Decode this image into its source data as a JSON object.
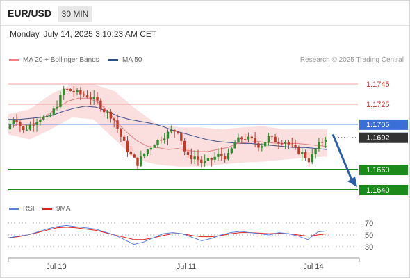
{
  "header": {
    "symbol": "EUR/USD",
    "timeframe": "30 MIN",
    "timestamp": "Monday, July 14, 2025 3:10:23 AM CET"
  },
  "legend": {
    "ma_bb": "MA 20 + Bollinger Bands",
    "ma50": "MA 50",
    "credit": "Research © 2025 Trading Central"
  },
  "rsi_legend": {
    "rsi": "RSI",
    "ma9": "9MA"
  },
  "colors": {
    "resistance": "#f4a0a0",
    "support": "#1a8a1a",
    "pivot": "#3a6fd8",
    "current": "#333333",
    "bollinger": "#f9d3d3",
    "candle_up": "#2e8b2e",
    "candle_down": "#c0392b",
    "arrow": "#2a5ea8"
  },
  "chart_data": [
    {
      "type": "candlestick",
      "x_ticks": [
        "Jul 10",
        "Jul 11",
        "Jul 14"
      ],
      "ylim": [
        1.1632,
        1.1762
      ],
      "levels": [
        {
          "value": 1.1745,
          "label": "1.1745",
          "kind": "resistance"
        },
        {
          "value": 1.1725,
          "label": "1.1725",
          "kind": "resistance"
        },
        {
          "value": 1.1705,
          "label": "1.1705",
          "kind": "pivot"
        },
        {
          "value": 1.1692,
          "label": "1.1692",
          "kind": "current"
        },
        {
          "value": 1.166,
          "label": "1.1660",
          "kind": "support"
        },
        {
          "value": 1.164,
          "label": "1.1640",
          "kind": "support"
        }
      ],
      "price_path": [
        1.17,
        1.1713,
        1.1698,
        1.1705,
        1.1712,
        1.171,
        1.1722,
        1.174,
        1.1738,
        1.1735,
        1.1733,
        1.1728,
        1.1718,
        1.1712,
        1.1692,
        1.1676,
        1.1666,
        1.1678,
        1.1686,
        1.1692,
        1.1698,
        1.1699,
        1.1672,
        1.1673,
        1.1666,
        1.167,
        1.1675,
        1.1672,
        1.1688,
        1.1692,
        1.1689,
        1.1683,
        1.1692,
        1.1688,
        1.1689,
        1.1681,
        1.1677,
        1.1669,
        1.1683,
        1.1692
      ],
      "ma20": [
        1.1702,
        1.1705,
        1.1704,
        1.1707,
        1.1715,
        1.1722,
        1.1728,
        1.1731,
        1.1731,
        1.1727,
        1.1718,
        1.1706,
        1.1696,
        1.1688,
        1.1683,
        1.1682,
        1.168,
        1.1681,
        1.1679,
        1.1678,
        1.1678,
        1.168,
        1.1682,
        1.1686,
        1.1687,
        1.1688,
        1.1687,
        1.1686,
        1.1686,
        1.1686,
        1.1685,
        1.1684,
        1.1683
      ],
      "ma50": [
        1.171,
        1.171,
        1.1711,
        1.1712,
        1.1714,
        1.1718,
        1.1721,
        1.1723,
        1.1722,
        1.1718,
        1.1713,
        1.171,
        1.1708,
        1.1706,
        1.1703,
        1.1699,
        1.1696,
        1.1693,
        1.169,
        1.1688,
        1.1687,
        1.1686,
        1.1686,
        1.1685,
        1.1684,
        1.1683,
        1.1682,
        1.1682,
        1.1681,
        1.168
      ],
      "bb_upper": [
        1.1715,
        1.172,
        1.1735,
        1.1745,
        1.1745,
        1.1738,
        1.172,
        1.1705,
        1.1702,
        1.1702,
        1.17,
        1.1702,
        1.1703,
        1.17,
        1.17,
        1.17
      ],
      "bb_lower": [
        1.1695,
        1.169,
        1.17,
        1.1712,
        1.171,
        1.169,
        1.167,
        1.1665,
        1.1663,
        1.1663,
        1.1665,
        1.1667,
        1.1668,
        1.167,
        1.1672,
        1.1673
      ],
      "forecast_target": 1.164
    },
    {
      "type": "line",
      "name": "RSI",
      "y_ticks": [
        70,
        50,
        30
      ],
      "rsi": [
        45,
        48,
        50,
        55,
        60,
        64,
        66,
        64,
        62,
        60,
        55,
        50,
        42,
        34,
        38,
        45,
        52,
        54,
        52,
        46,
        40,
        44,
        50,
        54,
        56,
        54,
        52,
        50,
        54,
        52,
        48,
        42,
        55,
        57
      ],
      "ma9": [
        45,
        47,
        50,
        54,
        58,
        62,
        63,
        62,
        60,
        58,
        54,
        50,
        46,
        42,
        42,
        45,
        49,
        52,
        52,
        49,
        47,
        47,
        49,
        52,
        54,
        54,
        53,
        52,
        53,
        52,
        50,
        48,
        50,
        52
      ]
    }
  ]
}
